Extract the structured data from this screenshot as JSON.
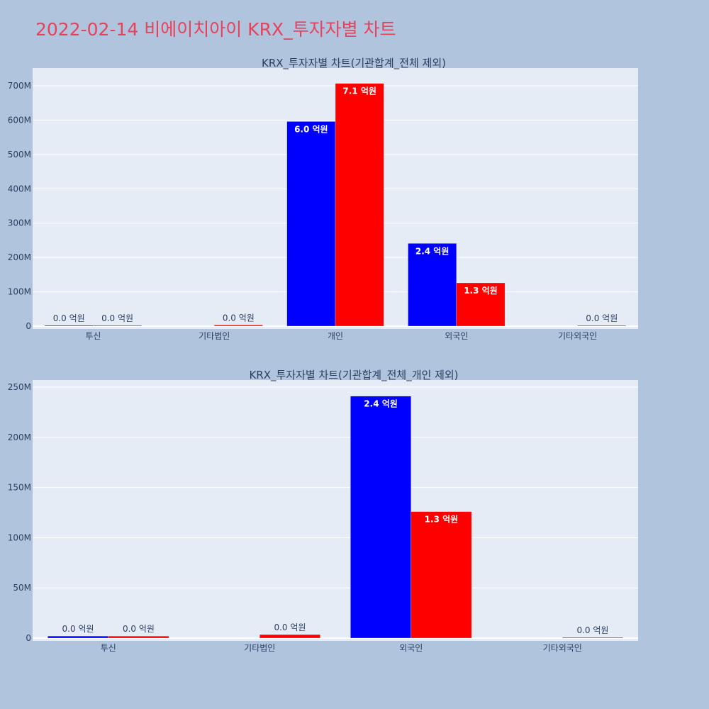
{
  "page": {
    "title": "2022-02-14 비에이치아이 KRX_투자자별 차트"
  },
  "colors": {
    "page_bg": "#b0c4de",
    "plot_bg": "#e5ecf6",
    "series_1": "#0000ff",
    "series_2": "#ff0000",
    "title": "#e8415a",
    "text": "#2a3f5f"
  },
  "chart_data": [
    {
      "type": "bar",
      "title": "KRX_투자자별 차트(기관합계_전체 제외)",
      "categories": [
        "투신",
        "기타법인",
        "개인",
        "외국인",
        "기타외국인"
      ],
      "ylim": [
        0,
        750000000
      ],
      "yticks": [
        0,
        100000000,
        200000000,
        300000000,
        400000000,
        500000000,
        600000000,
        700000000
      ],
      "ytick_labels": [
        "0",
        "100M",
        "200M",
        "300M",
        "400M",
        "500M",
        "600M",
        "700M"
      ],
      "grid": true,
      "series": [
        {
          "color": "#0000ff",
          "values": [
            2000000,
            null,
            596000000,
            241000000,
            null
          ],
          "labels": [
            "0.0 억원",
            "",
            "6.0 억원",
            "2.4 억원",
            ""
          ]
        },
        {
          "color": "#ff0000",
          "values": [
            2000000,
            3500000,
            707000000,
            126000000,
            400000
          ],
          "labels": [
            "0.0 억원",
            "0.0 억원",
            "7.1 억원",
            "1.3 억원",
            "0.0 억원"
          ]
        }
      ]
    },
    {
      "type": "bar",
      "title": "KRX_투자자별 차트(기관합계_전체_개인 제외)",
      "categories": [
        "투신",
        "기타법인",
        "외국인",
        "기타외국인"
      ],
      "ylim": [
        0,
        255000000
      ],
      "yticks": [
        0,
        50000000,
        100000000,
        150000000,
        200000000,
        250000000
      ],
      "ytick_labels": [
        "0",
        "50M",
        "100M",
        "150M",
        "200M",
        "250M"
      ],
      "grid": true,
      "series": [
        {
          "color": "#0000ff",
          "values": [
            2000000,
            null,
            241000000,
            null
          ],
          "labels": [
            "0.0 억원",
            "",
            "2.4 억원",
            ""
          ]
        },
        {
          "color": "#ff0000",
          "values": [
            2000000,
            3500000,
            126000000,
            400000
          ],
          "labels": [
            "0.0 억원",
            "0.0 억원",
            "1.3 억원",
            "0.0 억원"
          ]
        }
      ]
    }
  ]
}
